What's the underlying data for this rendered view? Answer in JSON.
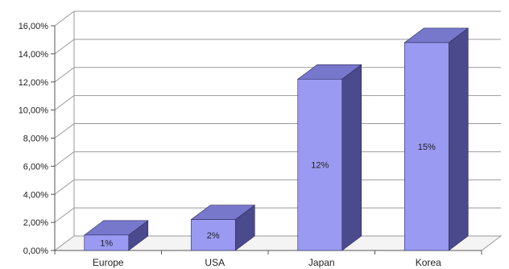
{
  "chart_data": {
    "type": "bar",
    "style": "3d-column",
    "categories": [
      "Europe",
      "USA",
      "Japan",
      "Korea"
    ],
    "values": [
      0.011,
      0.022,
      0.122,
      0.148
    ],
    "data_labels": [
      "1%",
      "2%",
      "12%",
      "15%"
    ],
    "y_ticks": [
      "0,00%",
      "2,00%",
      "4,00%",
      "6,00%",
      "8,00%",
      "10,00%",
      "12,00%",
      "14,00%",
      "16,00%"
    ],
    "ylim": [
      0,
      0.16
    ],
    "grid": true,
    "legend": "none",
    "colors": {
      "front": "#9a9af2",
      "top": "#7777cc",
      "side": "#4a4a8c",
      "grid": "#999999"
    }
  }
}
